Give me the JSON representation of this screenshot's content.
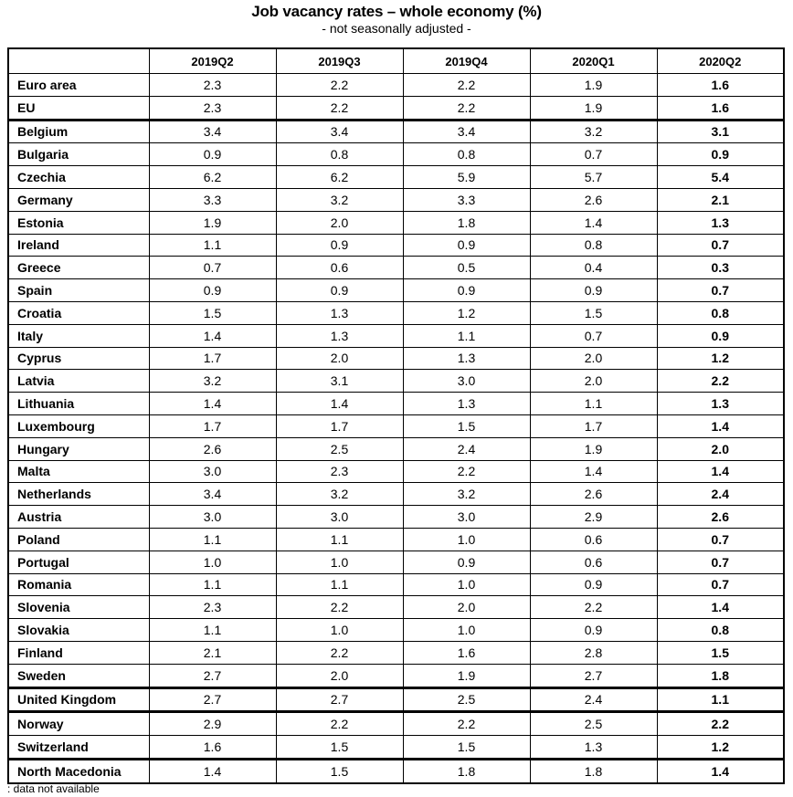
{
  "title": "Job vacancy rates – whole economy (%)",
  "subtitle": "- not seasonally adjusted -",
  "table": {
    "columns": [
      "",
      "2019Q2",
      "2019Q3",
      "2019Q4",
      "2020Q1",
      "2020Q2"
    ],
    "rows": [
      {
        "name": "Euro area",
        "values": [
          "2.3",
          "2.2",
          "2.2",
          "1.9",
          "1.6"
        ]
      },
      {
        "name": "EU",
        "values": [
          "2.3",
          "2.2",
          "2.2",
          "1.9",
          "1.6"
        ]
      },
      {
        "name": "Belgium",
        "values": [
          "3.4",
          "3.4",
          "3.4",
          "3.2",
          "3.1"
        ]
      },
      {
        "name": "Bulgaria",
        "values": [
          "0.9",
          "0.8",
          "0.8",
          "0.7",
          "0.9"
        ]
      },
      {
        "name": "Czechia",
        "values": [
          "6.2",
          "6.2",
          "5.9",
          "5.7",
          "5.4"
        ]
      },
      {
        "name": "Germany",
        "values": [
          "3.3",
          "3.2",
          "3.3",
          "2.6",
          "2.1"
        ]
      },
      {
        "name": "Estonia",
        "values": [
          "1.9",
          "2.0",
          "1.8",
          "1.4",
          "1.3"
        ]
      },
      {
        "name": "Ireland",
        "values": [
          "1.1",
          "0.9",
          "0.9",
          "0.8",
          "0.7"
        ]
      },
      {
        "name": "Greece",
        "values": [
          "0.7",
          "0.6",
          "0.5",
          "0.4",
          "0.3"
        ]
      },
      {
        "name": "Spain",
        "values": [
          "0.9",
          "0.9",
          "0.9",
          "0.9",
          "0.7"
        ]
      },
      {
        "name": "Croatia",
        "values": [
          "1.5",
          "1.3",
          "1.2",
          "1.5",
          "0.8"
        ]
      },
      {
        "name": "Italy",
        "values": [
          "1.4",
          "1.3",
          "1.1",
          "0.7",
          "0.9"
        ]
      },
      {
        "name": "Cyprus",
        "values": [
          "1.7",
          "2.0",
          "1.3",
          "2.0",
          "1.2"
        ]
      },
      {
        "name": "Latvia",
        "values": [
          "3.2",
          "3.1",
          "3.0",
          "2.0",
          "2.2"
        ]
      },
      {
        "name": "Lithuania",
        "values": [
          "1.4",
          "1.4",
          "1.3",
          "1.1",
          "1.3"
        ]
      },
      {
        "name": "Luxembourg",
        "values": [
          "1.7",
          "1.7",
          "1.5",
          "1.7",
          "1.4"
        ]
      },
      {
        "name": "Hungary",
        "values": [
          "2.6",
          "2.5",
          "2.4",
          "1.9",
          "2.0"
        ]
      },
      {
        "name": "Malta",
        "values": [
          "3.0",
          "2.3",
          "2.2",
          "1.4",
          "1.4"
        ]
      },
      {
        "name": "Netherlands",
        "values": [
          "3.4",
          "3.2",
          "3.2",
          "2.6",
          "2.4"
        ]
      },
      {
        "name": "Austria",
        "values": [
          "3.0",
          "3.0",
          "3.0",
          "2.9",
          "2.6"
        ]
      },
      {
        "name": "Poland",
        "values": [
          "1.1",
          "1.1",
          "1.0",
          "0.6",
          "0.7"
        ]
      },
      {
        "name": "Portugal",
        "values": [
          "1.0",
          "1.0",
          "0.9",
          "0.6",
          "0.7"
        ]
      },
      {
        "name": "Romania",
        "values": [
          "1.1",
          "1.1",
          "1.0",
          "0.9",
          "0.7"
        ]
      },
      {
        "name": "Slovenia",
        "values": [
          "2.3",
          "2.2",
          "2.0",
          "2.2",
          "1.4"
        ]
      },
      {
        "name": "Slovakia",
        "values": [
          "1.1",
          "1.0",
          "1.0",
          "0.9",
          "0.8"
        ]
      },
      {
        "name": "Finland",
        "values": [
          "2.1",
          "2.2",
          "1.6",
          "2.8",
          "1.5"
        ]
      },
      {
        "name": "Sweden",
        "values": [
          "2.7",
          "2.0",
          "1.9",
          "2.7",
          "1.8"
        ]
      },
      {
        "name": "United Kingdom",
        "values": [
          "2.7",
          "2.7",
          "2.5",
          "2.4",
          "1.1"
        ]
      },
      {
        "name": "Norway",
        "values": [
          "2.9",
          "2.2",
          "2.2",
          "2.5",
          "2.2"
        ]
      },
      {
        "name": "Switzerland",
        "values": [
          "1.6",
          "1.5",
          "1.5",
          "1.3",
          "1.2"
        ]
      },
      {
        "name": "North Macedonia",
        "values": [
          "1.4",
          "1.5",
          "1.8",
          "1.8",
          "1.4"
        ]
      }
    ],
    "thick_after": [
      1,
      26,
      27,
      29
    ]
  },
  "footnote": ": data not available"
}
